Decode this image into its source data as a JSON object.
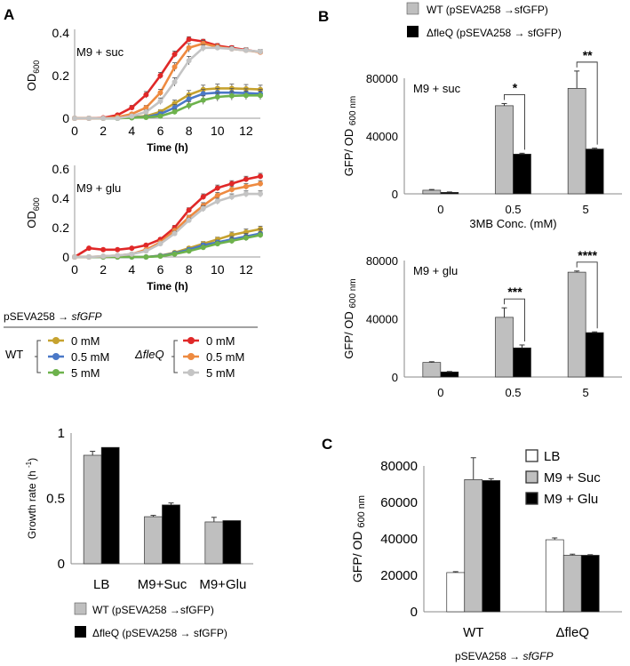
{
  "panel_labels": {
    "A": "A",
    "B": "B",
    "C": "C"
  },
  "construct_label": {
    "prefix": "pSEVA258 → ",
    "gene": "sfGFP"
  },
  "growth_legend": {
    "wt_label": "WT",
    "mut_label": "ΔfleQ",
    "entries": [
      {
        "label": "0 mM",
        "color": "#c6a22f"
      },
      {
        "label": "0.5 mM",
        "color": "#4a78c7"
      },
      {
        "label": "5 mM",
        "color": "#6db24c"
      },
      {
        "label": "0 mM",
        "color": "#e02828"
      },
      {
        "label": "0.5 mM",
        "color": "#ee8a40"
      },
      {
        "label": "5 mM",
        "color": "#c4c4c4"
      }
    ]
  },
  "bar_legend": {
    "wt": {
      "label": "WT (pSEVA258 →sfGFP)",
      "color": "#bfbfbf"
    },
    "mut": {
      "label": "ΔfleQ (pSEVA258 → sfGFP)",
      "color": "#000000"
    }
  },
  "legend_c": [
    {
      "label": "LB",
      "color": "#ffffff"
    },
    {
      "label": "M9 + Suc",
      "color": "#bfbfbf"
    },
    {
      "label": "M9 + Glu",
      "color": "#000000"
    }
  ],
  "chart_data": [
    {
      "id": "A1",
      "type": "line",
      "title": "M9 + suc",
      "xlabel": "Time (h)",
      "ylabel": "OD",
      "ylabel_sub": "600",
      "xlim": [
        0,
        13
      ],
      "ylim": [
        0,
        0.4
      ],
      "xticks": [
        0,
        2,
        4,
        6,
        8,
        10,
        12
      ],
      "yticks": [
        0,
        0.2,
        0.4
      ],
      "x": [
        0,
        1,
        2,
        3,
        4,
        5,
        6,
        7,
        8,
        9,
        10,
        11,
        12,
        13
      ],
      "series": [
        {
          "name": "WT 0 mM",
          "color": "#c6a22f",
          "values": [
            0,
            0,
            0,
            0,
            0.005,
            0.01,
            0.03,
            0.07,
            0.11,
            0.135,
            0.14,
            0.14,
            0.138,
            0.135
          ],
          "err": [
            0,
            0,
            0,
            0,
            0,
            0.005,
            0.01,
            0.015,
            0.02,
            0.02,
            0.02,
            0.02,
            0.02,
            0.02
          ]
        },
        {
          "name": "WT 0.5 mM",
          "color": "#4a78c7",
          "values": [
            0,
            0,
            0,
            0,
            0.003,
            0.006,
            0.02,
            0.05,
            0.09,
            0.115,
            0.12,
            0.12,
            0.118,
            0.115
          ],
          "err": [
            0,
            0,
            0,
            0,
            0,
            0.005,
            0.01,
            0.015,
            0.02,
            0.02,
            0.02,
            0.02,
            0.02,
            0.02
          ]
        },
        {
          "name": "WT 5 mM",
          "color": "#6db24c",
          "values": [
            0,
            0,
            0,
            0,
            0.002,
            0.004,
            0.01,
            0.03,
            0.06,
            0.085,
            0.1,
            0.105,
            0.107,
            0.107
          ],
          "err": [
            0,
            0,
            0,
            0,
            0,
            0.005,
            0.008,
            0.012,
            0.018,
            0.02,
            0.02,
            0.02,
            0.02,
            0.02
          ]
        },
        {
          "name": "ΔfleQ 0 mM",
          "color": "#e02828",
          "values": [
            0,
            0,
            0.002,
            0.015,
            0.05,
            0.11,
            0.2,
            0.3,
            0.37,
            0.36,
            0.34,
            0.33,
            0.32,
            0.31
          ],
          "err": [
            0,
            0,
            0,
            0.005,
            0.01,
            0.015,
            0.015,
            0.015,
            0.012,
            0.01,
            0.01,
            0.01,
            0.01,
            0.01
          ]
        },
        {
          "name": "ΔfleQ 0.5 mM",
          "color": "#ee8a40",
          "values": [
            0,
            0,
            0,
            0.005,
            0.02,
            0.05,
            0.12,
            0.24,
            0.33,
            0.35,
            0.335,
            0.325,
            0.318,
            0.31
          ],
          "err": [
            0,
            0,
            0,
            0,
            0.005,
            0.01,
            0.015,
            0.02,
            0.02,
            0.015,
            0.01,
            0.01,
            0.01,
            0.01
          ]
        },
        {
          "name": "ΔfleQ 5 mM",
          "color": "#c4c4c4",
          "values": [
            0,
            0,
            0,
            0,
            0.01,
            0.03,
            0.08,
            0.17,
            0.27,
            0.33,
            0.33,
            0.325,
            0.318,
            0.312
          ],
          "err": [
            0,
            0,
            0,
            0,
            0.005,
            0.01,
            0.015,
            0.02,
            0.02,
            0.015,
            0.01,
            0.01,
            0.01,
            0.01
          ]
        }
      ]
    },
    {
      "id": "A2",
      "type": "line",
      "title": "M9 + glu",
      "xlabel": "Time (h)",
      "ylabel": "OD",
      "ylabel_sub": "600",
      "xlim": [
        0,
        13
      ],
      "ylim": [
        0,
        0.6
      ],
      "xticks": [
        0,
        2,
        4,
        6,
        8,
        10,
        12
      ],
      "yticks": [
        0,
        0.2,
        0.4,
        0.6
      ],
      "x": [
        0,
        1,
        2,
        3,
        4,
        5,
        6,
        7,
        8,
        9,
        10,
        11,
        12,
        13
      ],
      "series": [
        {
          "name": "WT 0 mM",
          "color": "#c6a22f",
          "values": [
            0,
            0,
            0,
            0,
            0,
            0,
            0.01,
            0.03,
            0.06,
            0.09,
            0.12,
            0.15,
            0.17,
            0.19
          ],
          "err": [
            0,
            0,
            0,
            0,
            0,
            0,
            0.005,
            0.01,
            0.01,
            0.015,
            0.015,
            0.02,
            0.02,
            0.02
          ]
        },
        {
          "name": "WT 0.5 mM",
          "color": "#4a78c7",
          "values": [
            0,
            0,
            0,
            0,
            0,
            0,
            0.008,
            0.025,
            0.05,
            0.08,
            0.1,
            0.12,
            0.14,
            0.16
          ],
          "err": [
            0,
            0,
            0,
            0,
            0,
            0,
            0.005,
            0.01,
            0.01,
            0.015,
            0.015,
            0.02,
            0.02,
            0.03
          ]
        },
        {
          "name": "WT 5 mM",
          "color": "#6db24c",
          "values": [
            0,
            0,
            0,
            0,
            0,
            0,
            0.005,
            0.02,
            0.04,
            0.065,
            0.09,
            0.11,
            0.13,
            0.15
          ],
          "err": [
            0,
            0,
            0,
            0,
            0,
            0,
            0.005,
            0.01,
            0.01,
            0.015,
            0.015,
            0.02,
            0.02,
            0.02
          ]
        },
        {
          "name": "ΔfleQ 0 mM",
          "color": "#e02828",
          "values": [
            0,
            0.06,
            0.05,
            0.05,
            0.06,
            0.08,
            0.12,
            0.2,
            0.32,
            0.41,
            0.47,
            0.5,
            0.53,
            0.55
          ],
          "err": [
            0,
            0.005,
            0.005,
            0.005,
            0.005,
            0.01,
            0.01,
            0.015,
            0.015,
            0.02,
            0.02,
            0.02,
            0.02,
            0.02
          ]
        },
        {
          "name": "ΔfleQ 0.5 mM",
          "color": "#ee8a40",
          "values": [
            0,
            0,
            0.005,
            0.01,
            0.02,
            0.05,
            0.1,
            0.18,
            0.27,
            0.35,
            0.42,
            0.46,
            0.48,
            0.5
          ],
          "err": [
            0,
            0,
            0,
            0,
            0.005,
            0.005,
            0.01,
            0.015,
            0.015,
            0.02,
            0.02,
            0.02,
            0.02,
            0.02
          ]
        },
        {
          "name": "ΔfleQ 5 mM",
          "color": "#c4c4c4",
          "values": [
            0,
            0,
            0.005,
            0.01,
            0.02,
            0.04,
            0.09,
            0.16,
            0.25,
            0.33,
            0.38,
            0.41,
            0.43,
            0.43
          ],
          "err": [
            0,
            0,
            0,
            0,
            0.005,
            0.005,
            0.01,
            0.015,
            0.015,
            0.02,
            0.02,
            0.02,
            0.02,
            0.02
          ]
        }
      ]
    },
    {
      "id": "B1",
      "type": "bar",
      "title": "M9 + suc",
      "xlabel": "3MB Conc. (mM)",
      "ylabel": "GFP/ OD",
      "ylabel_sub": "600 nm",
      "ylim": [
        0,
        80000
      ],
      "yticks": [
        0,
        40000,
        80000
      ],
      "categories": [
        "0",
        "0.5",
        "5"
      ],
      "series": [
        {
          "name": "WT (pSEVA258 →sfGFP)",
          "color": "#bfbfbf",
          "values": [
            2500,
            61000,
            73000
          ],
          "err": [
            500,
            1500,
            12000
          ]
        },
        {
          "name": "ΔfleQ (pSEVA258 → sfGFP)",
          "color": "#000000",
          "values": [
            1000,
            27500,
            31000
          ],
          "err": [
            300,
            600,
            600
          ]
        }
      ],
      "significance": [
        "",
        "*",
        "**"
      ]
    },
    {
      "id": "B2",
      "type": "bar",
      "title": "M9 + glu",
      "xlabel": "",
      "ylabel": "GFP/ OD",
      "ylabel_sub": "600 nm",
      "ylim": [
        0,
        80000
      ],
      "yticks": [
        0,
        40000,
        80000
      ],
      "categories": [
        "0",
        "0.5",
        "5"
      ],
      "series": [
        {
          "name": "WT (pSEVA258 →sfGFP)",
          "color": "#bfbfbf",
          "values": [
            10000,
            41000,
            72000
          ],
          "err": [
            500,
            6500,
            800
          ]
        },
        {
          "name": "ΔfleQ (pSEVA258 → sfGFP)",
          "color": "#000000",
          "values": [
            3500,
            20000,
            30500
          ],
          "err": [
            300,
            2000,
            500
          ]
        }
      ],
      "significance": [
        "",
        "***",
        "****"
      ]
    },
    {
      "id": "A3",
      "type": "bar",
      "title": "",
      "xlabel": "",
      "ylabel": "Growth rate (h",
      "ylabel_sup": "-1",
      "ylabel_end": ")",
      "ylim": [
        0,
        1
      ],
      "yticks": [
        0,
        0.5,
        1
      ],
      "ytick_labels": [
        "0",
        "0.5",
        "1"
      ],
      "categories": [
        "LB",
        "M9+Suc",
        "M9+Glu"
      ],
      "series": [
        {
          "name": "WT (pSEVA258 →sfGFP)",
          "color": "#bfbfbf",
          "values": [
            0.83,
            0.36,
            0.32
          ],
          "err": [
            0.03,
            0.01,
            0.035
          ]
        },
        {
          "name": "ΔfleQ (pSEVA258 → sfGFP)",
          "color": "#000000",
          "values": [
            0.89,
            0.45,
            0.33
          ],
          "err": [
            0,
            0.015,
            0
          ]
        }
      ]
    },
    {
      "id": "C",
      "type": "bar",
      "title": "",
      "xlabel": "",
      "ylabel": "GFP/ OD",
      "ylabel_sub": "600 nm",
      "ylim": [
        0,
        80000
      ],
      "yticks": [
        0,
        20000,
        40000,
        60000,
        80000
      ],
      "categories": [
        "WT",
        "ΔfleQ"
      ],
      "series": [
        {
          "name": "LB",
          "color": "#ffffff",
          "values": [
            21500,
            39500
          ],
          "err": [
            500,
            1000
          ]
        },
        {
          "name": "M9 + Suc",
          "color": "#bfbfbf",
          "values": [
            72500,
            31000
          ],
          "err": [
            12000,
            600
          ]
        },
        {
          "name": "M9 + Glu",
          "color": "#000000",
          "values": [
            72000,
            31000
          ],
          "err": [
            1000,
            300
          ]
        }
      ]
    }
  ]
}
